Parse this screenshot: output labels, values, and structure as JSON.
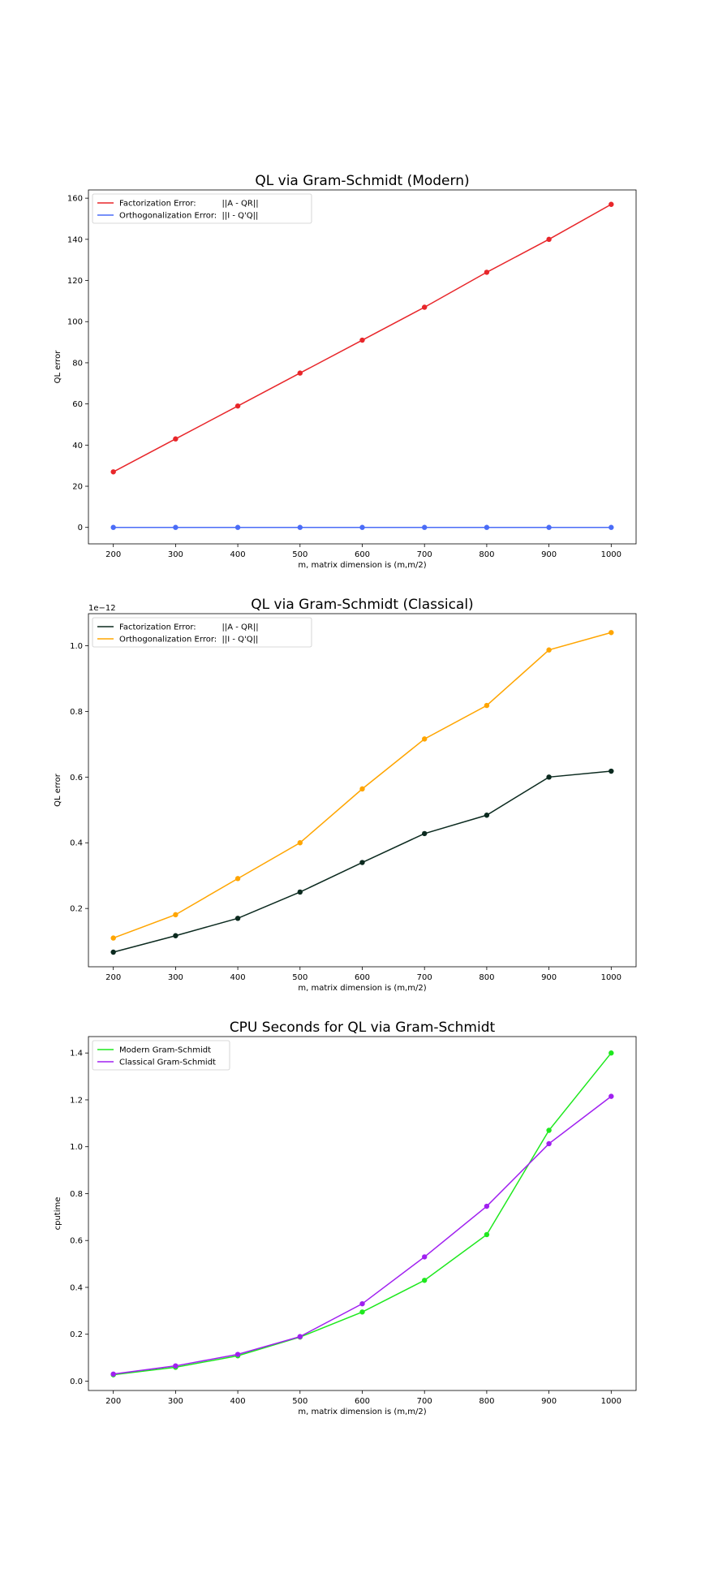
{
  "chart_data": [
    {
      "type": "line",
      "title": "QL via Gram-Schmidt (Modern)",
      "xlabel": "m, matrix dimension is (m,m/2)",
      "ylabel": "QL error",
      "offset_label": "",
      "x": [
        200,
        300,
        400,
        500,
        600,
        700,
        800,
        900,
        1000
      ],
      "xlim": [
        160,
        1040
      ],
      "ylim": [
        -8,
        164
      ],
      "xticks": [
        200,
        300,
        400,
        500,
        600,
        700,
        800,
        900,
        1000
      ],
      "yticks": [
        0,
        20,
        40,
        60,
        80,
        100,
        120,
        140,
        160
      ],
      "ytick_labels": [
        "0",
        "20",
        "40",
        "60",
        "80",
        "100",
        "120",
        "140",
        "160"
      ],
      "grid": false,
      "legend_position": "upper-left",
      "series": [
        {
          "name": "Factorization Error:          ||A - QR||",
          "color": "#e8262a",
          "values": [
            27,
            43,
            59,
            75,
            91,
            107,
            124,
            140,
            157
          ]
        },
        {
          "name": "Orthogonalization Error:  ||I - Q'Q||",
          "color": "#4a6cf7",
          "values": [
            0,
            0,
            0,
            0,
            0,
            0,
            0,
            0,
            0
          ]
        }
      ]
    },
    {
      "type": "line",
      "title": "QL via Gram-Schmidt (Classical)",
      "xlabel": "m, matrix dimension is (m,m/2)",
      "ylabel": "QL error",
      "offset_label": "1e−12",
      "x": [
        200,
        300,
        400,
        500,
        600,
        700,
        800,
        900,
        1000
      ],
      "xlim": [
        160,
        1040
      ],
      "ylim": [
        0.0225,
        1.0975
      ],
      "xticks": [
        200,
        300,
        400,
        500,
        600,
        700,
        800,
        900,
        1000
      ],
      "yticks": [
        0.2,
        0.4,
        0.6,
        0.8,
        1.0
      ],
      "ytick_labels": [
        "0.2",
        "0.4",
        "0.6",
        "0.8",
        "1.0"
      ],
      "grid": false,
      "legend_position": "upper-left",
      "series": [
        {
          "name": "Factorization Error:          ||A - QR||",
          "color": "#0b2a1f",
          "values": [
            0.067,
            0.117,
            0.17,
            0.25,
            0.34,
            0.428,
            0.484,
            0.6,
            0.618
          ]
        },
        {
          "name": "Orthogonalization Error:  ||I - Q'Q||",
          "color": "#ffa500",
          "values": [
            0.11,
            0.181,
            0.291,
            0.4,
            0.564,
            0.716,
            0.818,
            0.987,
            1.04
          ]
        }
      ]
    },
    {
      "type": "line",
      "title": "CPU Seconds for QL via Gram-Schmidt",
      "xlabel": "m, matrix dimension is (m,m/2)",
      "ylabel": "cputime",
      "offset_label": "",
      "x": [
        200,
        300,
        400,
        500,
        600,
        700,
        800,
        900,
        1000
      ],
      "xlim": [
        160,
        1040
      ],
      "ylim": [
        -0.04,
        1.47
      ],
      "xticks": [
        200,
        300,
        400,
        500,
        600,
        700,
        800,
        900,
        1000
      ],
      "yticks": [
        0.0,
        0.2,
        0.4,
        0.6,
        0.8,
        1.0,
        1.2,
        1.4
      ],
      "ytick_labels": [
        "0.0",
        "0.2",
        "0.4",
        "0.6",
        "0.8",
        "1.0",
        "1.2",
        "1.4"
      ],
      "grid": false,
      "legend_position": "upper-left",
      "series": [
        {
          "name": "Modern Gram-Schmidt",
          "color": "#1ee81e",
          "values": [
            0.027,
            0.059,
            0.108,
            0.188,
            0.295,
            0.43,
            0.625,
            1.07,
            1.4
          ]
        },
        {
          "name": "Classical Gram-Schmidt",
          "color": "#a020f0",
          "values": [
            0.03,
            0.065,
            0.114,
            0.19,
            0.33,
            0.53,
            0.746,
            1.013,
            1.215
          ]
        }
      ]
    }
  ]
}
